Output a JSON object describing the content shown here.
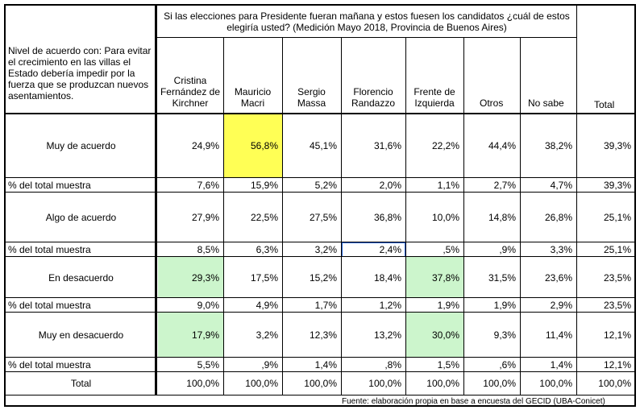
{
  "title": "Si las elecciones para Presidente fueran mañana y estos fuesen los candidatos ¿cuál de estos elegiría usted? (Medición Mayo 2018, Provincia de Buenos Aires)",
  "row_header": "Nivel de acuerdo con: Para evitar el crecimiento en las villas el Estado debería impedir por la fuerza que se produzcan nuevos asentamientos.",
  "columns": [
    "Cristina Fernández de Kirchner",
    "Mauricio Macri",
    "Sergio Massa",
    "Florencio Randazzo",
    "Frente de Izquierda",
    "Otros",
    "No sabe",
    "Total"
  ],
  "rows": [
    {
      "label": "Muy de acuerdo",
      "values": [
        "24,9%",
        "56,8%",
        "45,1%",
        "31,6%",
        "22,2%",
        "44,4%",
        "38,2%",
        "39,3%"
      ]
    },
    {
      "label": "% del total muestra",
      "values": [
        "7,6%",
        "15,9%",
        "5,2%",
        "2,0%",
        "1,1%",
        "2,7%",
        "4,7%",
        "39,3%"
      ]
    },
    {
      "label": "Algo de acuerdo",
      "values": [
        "27,9%",
        "22,5%",
        "27,5%",
        "36,8%",
        "10,0%",
        "14,8%",
        "26,8%",
        "25,1%"
      ]
    },
    {
      "label": "% del total muestra",
      "values": [
        "8,5%",
        "6,3%",
        "3,2%",
        "2,4%",
        ",5%",
        ",9%",
        "3,3%",
        "25,1%"
      ]
    },
    {
      "label": "En desacuerdo",
      "values": [
        "29,3%",
        "17,5%",
        "15,2%",
        "18,4%",
        "37,8%",
        "31,5%",
        "23,6%",
        "23,5%"
      ]
    },
    {
      "label": "% del total muestra",
      "values": [
        "9,0%",
        "4,9%",
        "1,7%",
        "1,2%",
        "1,9%",
        "1,9%",
        "2,9%",
        "23,5%"
      ]
    },
    {
      "label": "Muy en desacuerdo",
      "values": [
        "17,9%",
        "3,2%",
        "12,3%",
        "13,2%",
        "30,0%",
        "9,3%",
        "11,4%",
        "12,1%"
      ]
    },
    {
      "label": "% del total muestra",
      "values": [
        "5,5%",
        ",9%",
        "1,4%",
        ",8%",
        "1,5%",
        ",6%",
        "1,4%",
        "12,1%"
      ]
    },
    {
      "label": "Total",
      "values": [
        "100,0%",
        "100,0%",
        "100,0%",
        "100,0%",
        "100,0%",
        "100,0%",
        "100,0%",
        "100,0%"
      ]
    }
  ],
  "highlight_colors": {
    "yellow": "#ffff55",
    "green": "#ccf5cc",
    "selection": "#1f5fd1"
  },
  "source": "Fuente: elaboración propia en base a encuesta del GECID (UBA-Conicet)"
}
